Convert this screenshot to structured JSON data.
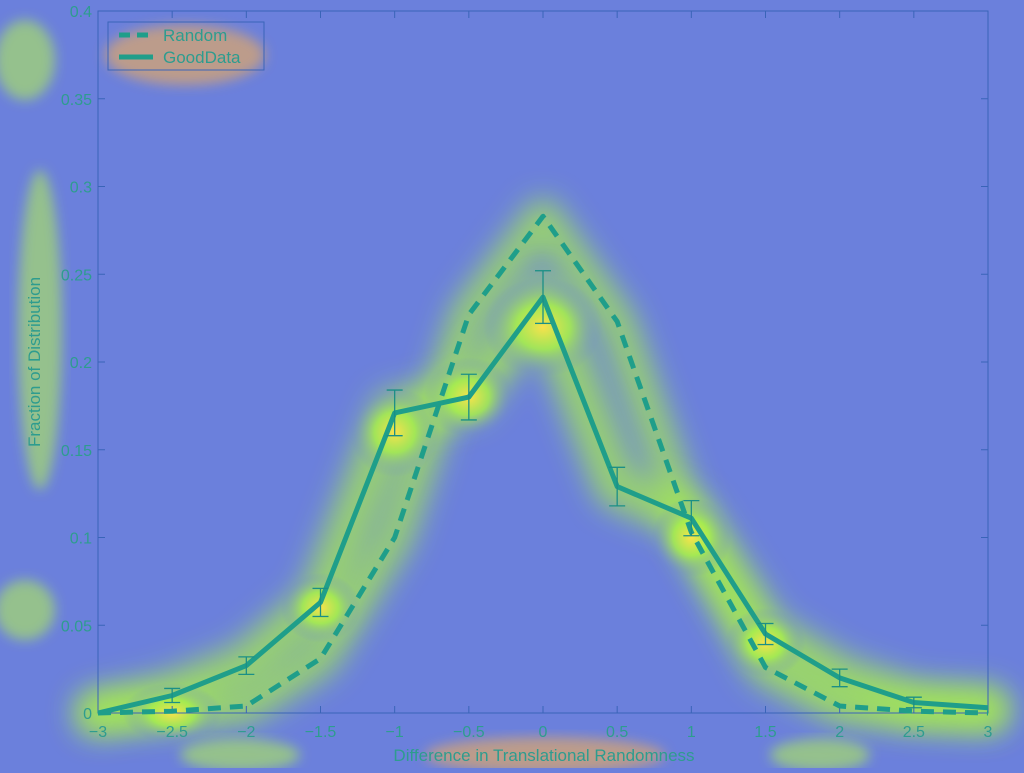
{
  "chart_data": {
    "type": "line",
    "title": "",
    "xlabel": "Difference in Translational Randomness",
    "ylabel": "Fraction of Distribution",
    "xlim": [
      -3,
      3
    ],
    "ylim": [
      0,
      0.4
    ],
    "x_ticks": [
      -3,
      -2.5,
      -2,
      -1.5,
      -1,
      -0.5,
      0,
      0.5,
      1,
      1.5,
      2,
      2.5,
      3
    ],
    "x_tick_labels": [
      "−3",
      "−2.5",
      "−2",
      "−1.5",
      "−1",
      "−0.5",
      "0",
      "0.5",
      "1",
      "1.5",
      "2",
      "2.5",
      "3"
    ],
    "y_ticks": [
      0,
      0.05,
      0.1,
      0.15,
      0.2,
      0.25,
      0.3,
      0.35,
      0.4
    ],
    "y_tick_labels": [
      "0",
      "0.05",
      "0.1",
      "0.15",
      "0.2",
      "0.25",
      "0.3",
      "0.35",
      "0.4"
    ],
    "grid": false,
    "legend_position": "top-left",
    "colors": {
      "line": "#1f9e8a",
      "axis": "#3a64b8",
      "text": "#2e9c8f",
      "background": "#6b80dc"
    },
    "series": [
      {
        "name": "Random",
        "style": "dashed",
        "x": [
          -3,
          -2.5,
          -2,
          -1.5,
          -1,
          -0.5,
          0,
          0.5,
          1,
          1.5,
          2,
          2.5,
          3
        ],
        "y": [
          0,
          0.001,
          0.004,
          0.031,
          0.1,
          0.227,
          0.283,
          0.223,
          0.103,
          0.026,
          0.004,
          0.001,
          0
        ]
      },
      {
        "name": "GoodData",
        "style": "solid",
        "x": [
          -3,
          -2.5,
          -2,
          -1.5,
          -1,
          -0.5,
          0,
          0.5,
          1,
          1.5,
          2,
          2.5,
          3
        ],
        "y": [
          0,
          0.01,
          0.027,
          0.063,
          0.171,
          0.18,
          0.237,
          0.129,
          0.111,
          0.045,
          0.02,
          0.006,
          0.003
        ],
        "error": [
          0,
          0.004,
          0.005,
          0.008,
          0.013,
          0.013,
          0.015,
          0.011,
          0.01,
          0.006,
          0.005,
          0.003,
          0
        ]
      }
    ]
  }
}
